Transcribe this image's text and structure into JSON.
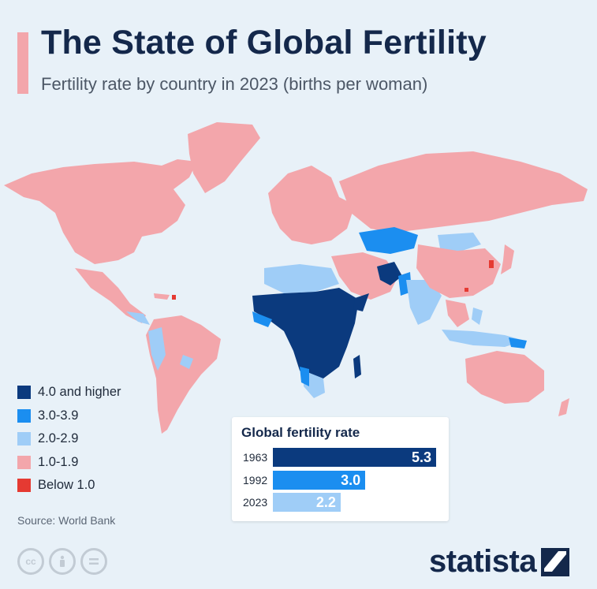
{
  "header": {
    "title": "The State of Global Fertility",
    "subtitle": "Fertility rate by country in 2023 (births per woman)"
  },
  "legend": [
    {
      "label": "4.0 and higher",
      "color": "#0b3a7e"
    },
    {
      "label": "3.0-3.9",
      "color": "#1b8ef0"
    },
    {
      "label": "2.0-2.9",
      "color": "#9fcdf7"
    },
    {
      "label": "1.0-1.9",
      "color": "#f3a6ab"
    },
    {
      "label": "Below 1.0",
      "color": "#e53a32"
    }
  ],
  "global_rate": {
    "title": "Global fertility rate",
    "max": 5.3,
    "rows": [
      {
        "year": "1963",
        "value": 5.3,
        "label": "5.3",
        "color": "#0b3a7e"
      },
      {
        "year": "1992",
        "value": 3.0,
        "label": "3.0",
        "color": "#1b8ef0"
      },
      {
        "year": "2023",
        "value": 2.2,
        "label": "2.2",
        "color": "#9fcdf7"
      }
    ]
  },
  "footer": {
    "source": "Source: World Bank",
    "brand": "statista",
    "license_icons": [
      "cc-icon",
      "attribution-icon",
      "no-derivatives-icon"
    ]
  },
  "colors": {
    "background": "#e8f1f8",
    "accent": "#f3a6ab",
    "title": "#14284b"
  }
}
